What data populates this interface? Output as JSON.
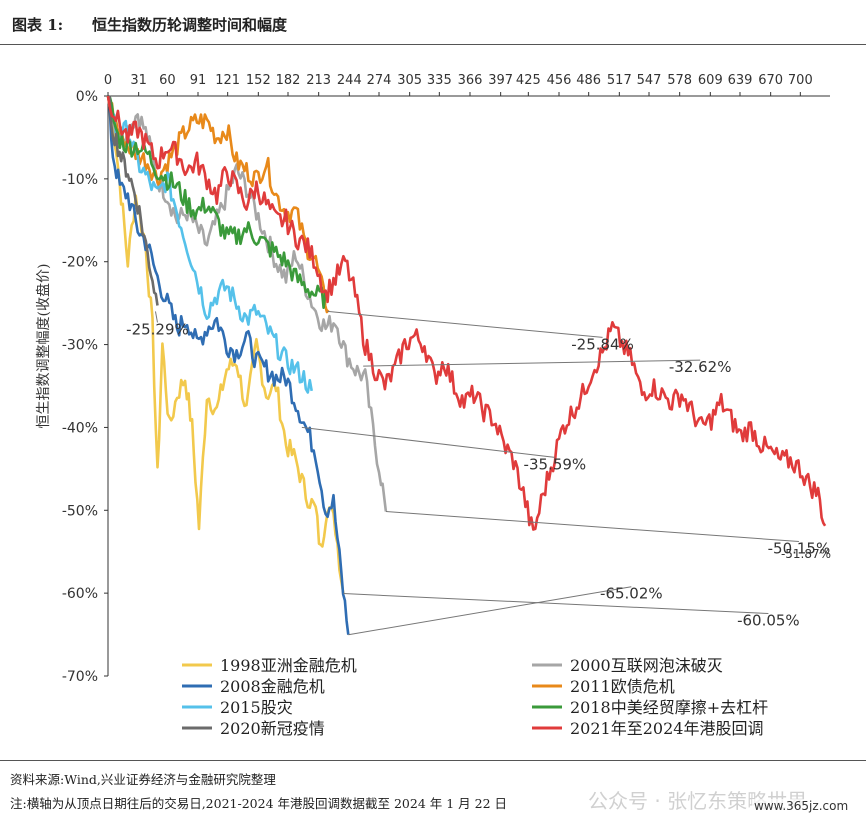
{
  "header": {
    "label": "图表 1:",
    "title": "恒生指数历轮调整时间和幅度"
  },
  "footer": {
    "source": "资料来源:Wind,兴业证券经济与金融研究院整理",
    "note": "注:横轴为从顶点日期往后的交易日,2021-2024 年港股回调数据截至 2024 年 1 月 22 日",
    "watermark": "公众号 · 张忆东策略世界",
    "watermark_url": "www.365jz.com"
  },
  "chart_data": {
    "type": "line",
    "ylabel": "恒生指数调整幅度(收盘价)",
    "x_ticks": [
      0,
      31,
      60,
      91,
      121,
      152,
      182,
      213,
      244,
      274,
      305,
      335,
      366,
      397,
      425,
      456,
      486,
      517,
      547,
      578,
      609,
      639,
      670,
      700
    ],
    "y_ticks": [
      0,
      -10,
      -20,
      -30,
      -40,
      -50,
      -60,
      -70
    ],
    "y_tick_labels": [
      "0%",
      "-10%",
      "-20%",
      "-30%",
      "-40%",
      "-50%",
      "-60%",
      "-70%"
    ],
    "xlim": [
      0,
      730
    ],
    "ylim": [
      -70,
      0
    ],
    "series": [
      {
        "name": "1998亚洲金融危机",
        "color": "#f2c94c",
        "end": [
          238,
          -60.05
        ],
        "points": [
          [
            0,
            0
          ],
          [
            8,
            -6
          ],
          [
            15,
            -14
          ],
          [
            20,
            -20
          ],
          [
            28,
            -12
          ],
          [
            38,
            -18
          ],
          [
            45,
            -28
          ],
          [
            50,
            -46
          ],
          [
            55,
            -30
          ],
          [
            62,
            -40
          ],
          [
            70,
            -36
          ],
          [
            78,
            -34
          ],
          [
            85,
            -40
          ],
          [
            92,
            -52
          ],
          [
            100,
            -36
          ],
          [
            110,
            -38
          ],
          [
            120,
            -33
          ],
          [
            130,
            -32
          ],
          [
            140,
            -38
          ],
          [
            150,
            -30
          ],
          [
            160,
            -36
          ],
          [
            170,
            -35
          ],
          [
            180,
            -42
          ],
          [
            190,
            -44
          ],
          [
            200,
            -48
          ],
          [
            210,
            -50
          ],
          [
            215,
            -55
          ],
          [
            222,
            -49
          ],
          [
            230,
            -52
          ],
          [
            238,
            -60.05
          ]
        ]
      },
      {
        "name": "2000互联网泡沫破灭",
        "color": "#a6a6a6",
        "end": [
          281,
          -50.15
        ],
        "points": [
          [
            0,
            0
          ],
          [
            10,
            -5
          ],
          [
            20,
            -4
          ],
          [
            30,
            -2
          ],
          [
            40,
            -5
          ],
          [
            50,
            -10
          ],
          [
            60,
            -12
          ],
          [
            70,
            -15
          ],
          [
            80,
            -14
          ],
          [
            90,
            -16
          ],
          [
            100,
            -18
          ],
          [
            110,
            -15
          ],
          [
            120,
            -12
          ],
          [
            130,
            -9
          ],
          [
            140,
            -11
          ],
          [
            150,
            -14
          ],
          [
            160,
            -17
          ],
          [
            170,
            -20
          ],
          [
            180,
            -22
          ],
          [
            190,
            -19
          ],
          [
            200,
            -23
          ],
          [
            210,
            -26
          ],
          [
            220,
            -28
          ],
          [
            230,
            -27
          ],
          [
            240,
            -31
          ],
          [
            250,
            -33
          ],
          [
            260,
            -34
          ],
          [
            270,
            -42
          ],
          [
            276,
            -46
          ],
          [
            281,
            -50.15
          ]
        ]
      },
      {
        "name": "2008金融危机",
        "color": "#2f6db3",
        "end": [
          243,
          -65.02
        ],
        "points": [
          [
            0,
            0
          ],
          [
            5,
            -7
          ],
          [
            12,
            -11
          ],
          [
            20,
            -12
          ],
          [
            30,
            -16
          ],
          [
            40,
            -18
          ],
          [
            50,
            -22
          ],
          [
            60,
            -25
          ],
          [
            70,
            -28
          ],
          [
            80,
            -27
          ],
          [
            90,
            -30
          ],
          [
            100,
            -28
          ],
          [
            110,
            -27
          ],
          [
            120,
            -30
          ],
          [
            130,
            -31
          ],
          [
            140,
            -29
          ],
          [
            150,
            -32
          ],
          [
            160,
            -33
          ],
          [
            170,
            -34
          ],
          [
            180,
            -34
          ],
          [
            190,
            -37
          ],
          [
            200,
            -40
          ],
          [
            210,
            -43
          ],
          [
            220,
            -50
          ],
          [
            228,
            -49
          ],
          [
            236,
            -58
          ],
          [
            243,
            -65.02
          ]
        ]
      },
      {
        "name": "2011欧债危机",
        "color": "#e8891a",
        "end": [
          223,
          -25.84
        ],
        "points": [
          [
            0,
            0
          ],
          [
            10,
            -4
          ],
          [
            20,
            -6
          ],
          [
            30,
            -7
          ],
          [
            40,
            -8
          ],
          [
            50,
            -10
          ],
          [
            60,
            -8
          ],
          [
            70,
            -6
          ],
          [
            80,
            -4
          ],
          [
            90,
            -3
          ],
          [
            100,
            -3
          ],
          [
            110,
            -5
          ],
          [
            120,
            -4
          ],
          [
            130,
            -8
          ],
          [
            140,
            -9
          ],
          [
            150,
            -10
          ],
          [
            160,
            -8
          ],
          [
            170,
            -12
          ],
          [
            180,
            -14
          ],
          [
            190,
            -14
          ],
          [
            200,
            -18
          ],
          [
            210,
            -20
          ],
          [
            218,
            -24
          ],
          [
            223,
            -25.84
          ]
        ]
      },
      {
        "name": "2015股灾",
        "color": "#55c1ea",
        "end": [
          206,
          -35.59
        ],
        "points": [
          [
            0,
            0
          ],
          [
            10,
            -5
          ],
          [
            20,
            -4
          ],
          [
            30,
            -8
          ],
          [
            40,
            -10
          ],
          [
            50,
            -12
          ],
          [
            60,
            -10
          ],
          [
            70,
            -14
          ],
          [
            80,
            -18
          ],
          [
            90,
            -22
          ],
          [
            100,
            -26
          ],
          [
            110,
            -24
          ],
          [
            120,
            -23
          ],
          [
            130,
            -25
          ],
          [
            140,
            -27
          ],
          [
            150,
            -26
          ],
          [
            160,
            -28
          ],
          [
            170,
            -30
          ],
          [
            180,
            -32
          ],
          [
            190,
            -33
          ],
          [
            198,
            -34
          ],
          [
            206,
            -35.59
          ]
        ]
      },
      {
        "name": "2018中美经贸摩擦+去杠杆",
        "color": "#3a9a3a",
        "end": [
          222,
          -24.5
        ],
        "points": [
          [
            0,
            0
          ],
          [
            10,
            -5
          ],
          [
            20,
            -6
          ],
          [
            30,
            -6
          ],
          [
            40,
            -7
          ],
          [
            50,
            -9
          ],
          [
            60,
            -10
          ],
          [
            70,
            -11
          ],
          [
            80,
            -13
          ],
          [
            90,
            -14
          ],
          [
            100,
            -13
          ],
          [
            110,
            -15
          ],
          [
            120,
            -17
          ],
          [
            130,
            -17
          ],
          [
            140,
            -16
          ],
          [
            150,
            -17
          ],
          [
            160,
            -18
          ],
          [
            170,
            -19
          ],
          [
            180,
            -20
          ],
          [
            190,
            -22
          ],
          [
            200,
            -23
          ],
          [
            210,
            -24
          ],
          [
            222,
            -24.5
          ]
        ]
      },
      {
        "name": "2020新冠疫情",
        "color": "#6b6b6b",
        "end": [
          50,
          -25.29
        ],
        "points": [
          [
            0,
            0
          ],
          [
            5,
            -4
          ],
          [
            10,
            -6
          ],
          [
            15,
            -8
          ],
          [
            20,
            -9
          ],
          [
            25,
            -11
          ],
          [
            30,
            -13
          ],
          [
            35,
            -16
          ],
          [
            40,
            -19
          ],
          [
            45,
            -22
          ],
          [
            50,
            -25.29
          ]
        ]
      },
      {
        "name": "2021年至2024年港股回调",
        "color": "#e03b3b",
        "end": [
          725,
          -51.87
        ],
        "points": [
          [
            0,
            0
          ],
          [
            10,
            -3
          ],
          [
            20,
            -5
          ],
          [
            30,
            -4
          ],
          [
            40,
            -6
          ],
          [
            50,
            -8
          ],
          [
            60,
            -6
          ],
          [
            70,
            -7
          ],
          [
            80,
            -9
          ],
          [
            90,
            -8
          ],
          [
            100,
            -10
          ],
          [
            110,
            -12
          ],
          [
            120,
            -9
          ],
          [
            130,
            -11
          ],
          [
            140,
            -13
          ],
          [
            150,
            -11
          ],
          [
            160,
            -13
          ],
          [
            170,
            -15
          ],
          [
            180,
            -15
          ],
          [
            190,
            -17
          ],
          [
            200,
            -18
          ],
          [
            210,
            -20
          ],
          [
            220,
            -24
          ],
          [
            230,
            -22
          ],
          [
            240,
            -20
          ],
          [
            250,
            -24
          ],
          [
            260,
            -30
          ],
          [
            270,
            -33
          ],
          [
            280,
            -35
          ],
          [
            290,
            -33
          ],
          [
            300,
            -30
          ],
          [
            310,
            -29
          ],
          [
            320,
            -30
          ],
          [
            330,
            -34
          ],
          [
            340,
            -32
          ],
          [
            350,
            -35
          ],
          [
            360,
            -37
          ],
          [
            370,
            -36
          ],
          [
            380,
            -38
          ],
          [
            390,
            -39
          ],
          [
            400,
            -42
          ],
          [
            410,
            -44
          ],
          [
            420,
            -48
          ],
          [
            430,
            -53
          ],
          [
            440,
            -48
          ],
          [
            450,
            -44
          ],
          [
            460,
            -40
          ],
          [
            470,
            -38
          ],
          [
            480,
            -36
          ],
          [
            490,
            -33
          ],
          [
            500,
            -31
          ],
          [
            510,
            -28
          ],
          [
            520,
            -30
          ],
          [
            530,
            -32
          ],
          [
            540,
            -36
          ],
          [
            550,
            -35
          ],
          [
            560,
            -36
          ],
          [
            570,
            -37
          ],
          [
            580,
            -36
          ],
          [
            590,
            -38
          ],
          [
            600,
            -40
          ],
          [
            610,
            -39
          ],
          [
            620,
            -37
          ],
          [
            630,
            -39
          ],
          [
            640,
            -41
          ],
          [
            650,
            -40
          ],
          [
            660,
            -42
          ],
          [
            670,
            -43
          ],
          [
            680,
            -44
          ],
          [
            690,
            -44
          ],
          [
            700,
            -45
          ],
          [
            710,
            -47
          ],
          [
            718,
            -48
          ],
          [
            725,
            -51.87
          ]
        ]
      }
    ],
    "annotations": [
      {
        "text": "-25.29%",
        "series": "2020新冠疫情"
      },
      {
        "text": "-25.84%",
        "series": "2011欧债危机"
      },
      {
        "text": "-32.62%",
        "series": "2000互联网泡沫破灭"
      },
      {
        "text": "-35.59%",
        "series": "2015股灾"
      },
      {
        "text": "-50.15%",
        "series": "2000互联网泡沫破灭"
      },
      {
        "text": "-65.02%",
        "series": "2008金融危机"
      },
      {
        "text": "-60.05%",
        "series": "1998亚洲金融危机"
      },
      {
        "text": "-51.87%",
        "series": "2021年至2024年港股回调"
      }
    ],
    "legend_order": [
      "1998亚洲金融危机",
      "2000互联网泡沫破灭",
      "2008金融危机",
      "2011欧债危机",
      "2015股灾",
      "2018中美经贸摩擦+去杠杆",
      "2020新冠疫情",
      "2021年至2024年港股回调"
    ],
    "legend_position": "bottom",
    "grid": false
  }
}
